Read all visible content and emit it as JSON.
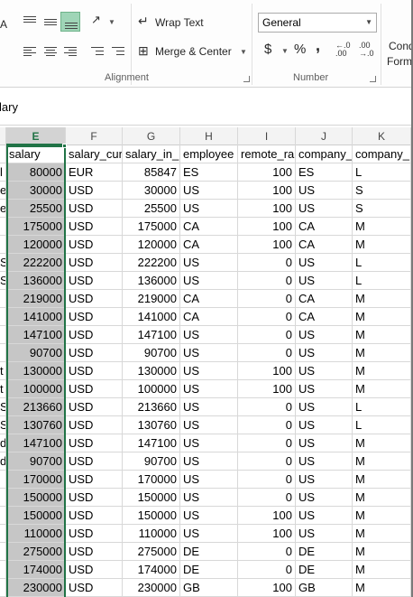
{
  "ribbon": {
    "col_a_label": "A",
    "wrap_text": "Wrap Text",
    "merge_center": "Merge & Center",
    "alignment_label": "Alignment",
    "number_format": "General",
    "currency_symbol": "$",
    "percent_symbol": "%",
    "comma_symbol": ",",
    "number_label": "Number",
    "cond_line1": "Cond",
    "cond_line2": "Form"
  },
  "formula_bar": {
    "text": "lary"
  },
  "columns": [
    {
      "letter": "E",
      "selected": true
    },
    {
      "letter": "F",
      "selected": false
    },
    {
      "letter": "G",
      "selected": false
    },
    {
      "letter": "H",
      "selected": false
    },
    {
      "letter": "I",
      "selected": false
    },
    {
      "letter": "J",
      "selected": false
    },
    {
      "letter": "K",
      "selected": false
    }
  ],
  "header_row": [
    "salary",
    "salary_cur",
    "salary_in_",
    "employee",
    "remote_ra",
    "company_",
    "company_"
  ],
  "rows": [
    {
      "d": "l",
      "cells": [
        "80000",
        "EUR",
        "85847",
        "ES",
        "100",
        "ES",
        "L"
      ]
    },
    {
      "d": "e",
      "cells": [
        "30000",
        "USD",
        "30000",
        "US",
        "100",
        "US",
        "S"
      ]
    },
    {
      "d": "e",
      "cells": [
        "25500",
        "USD",
        "25500",
        "US",
        "100",
        "US",
        "S"
      ]
    },
    {
      "d": "",
      "cells": [
        "175000",
        "USD",
        "175000",
        "CA",
        "100",
        "CA",
        "M"
      ]
    },
    {
      "d": "",
      "cells": [
        "120000",
        "USD",
        "120000",
        "CA",
        "100",
        "CA",
        "M"
      ]
    },
    {
      "d": "S",
      "cells": [
        "222200",
        "USD",
        "222200",
        "US",
        "0",
        "US",
        "L"
      ]
    },
    {
      "d": "S",
      "cells": [
        "136000",
        "USD",
        "136000",
        "US",
        "0",
        "US",
        "L"
      ]
    },
    {
      "d": "",
      "cells": [
        "219000",
        "USD",
        "219000",
        "CA",
        "0",
        "CA",
        "M"
      ]
    },
    {
      "d": "",
      "cells": [
        "141000",
        "USD",
        "141000",
        "CA",
        "0",
        "CA",
        "M"
      ]
    },
    {
      "d": "",
      "cells": [
        "147100",
        "USD",
        "147100",
        "US",
        "0",
        "US",
        "M"
      ]
    },
    {
      "d": "",
      "cells": [
        "90700",
        "USD",
        "90700",
        "US",
        "0",
        "US",
        "M"
      ]
    },
    {
      "d": "t",
      "cells": [
        "130000",
        "USD",
        "130000",
        "US",
        "100",
        "US",
        "M"
      ]
    },
    {
      "d": "t",
      "cells": [
        "100000",
        "USD",
        "100000",
        "US",
        "100",
        "US",
        "M"
      ]
    },
    {
      "d": "S",
      "cells": [
        "213660",
        "USD",
        "213660",
        "US",
        "0",
        "US",
        "L"
      ]
    },
    {
      "d": "S",
      "cells": [
        "130760",
        "USD",
        "130760",
        "US",
        "0",
        "US",
        "L"
      ]
    },
    {
      "d": "d",
      "cells": [
        "147100",
        "USD",
        "147100",
        "US",
        "0",
        "US",
        "M"
      ]
    },
    {
      "d": "d",
      "cells": [
        "90700",
        "USD",
        "90700",
        "US",
        "0",
        "US",
        "M"
      ]
    },
    {
      "d": "",
      "cells": [
        "170000",
        "USD",
        "170000",
        "US",
        "0",
        "US",
        "M"
      ]
    },
    {
      "d": "",
      "cells": [
        "150000",
        "USD",
        "150000",
        "US",
        "0",
        "US",
        "M"
      ]
    },
    {
      "d": "",
      "cells": [
        "150000",
        "USD",
        "150000",
        "US",
        "100",
        "US",
        "M"
      ]
    },
    {
      "d": "",
      "cells": [
        "110000",
        "USD",
        "110000",
        "US",
        "100",
        "US",
        "M"
      ]
    },
    {
      "d": "",
      "cells": [
        "275000",
        "USD",
        "275000",
        "DE",
        "0",
        "DE",
        "M"
      ]
    },
    {
      "d": "",
      "cells": [
        "174000",
        "USD",
        "174000",
        "DE",
        "0",
        "DE",
        "M"
      ]
    },
    {
      "d": "",
      "cells": [
        "230000",
        "USD",
        "230000",
        "GB",
        "100",
        "GB",
        "M"
      ]
    },
    {
      "d": "",
      "cells": [
        "",
        "",
        "",
        "",
        "",
        "",
        ""
      ]
    }
  ]
}
